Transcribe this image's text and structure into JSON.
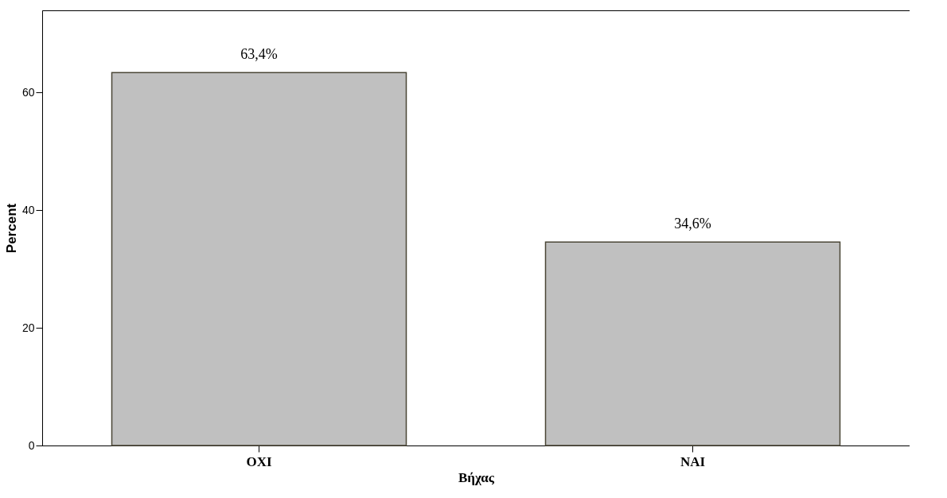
{
  "chart_data": {
    "type": "bar",
    "xlabel": "Βήχας",
    "ylabel": "Percent",
    "categories": [
      "ΟΧΙ",
      "ΝΑΙ"
    ],
    "values": [
      63.4,
      34.6
    ],
    "value_labels": [
      "63,4%",
      "34,6%"
    ],
    "color": "#c0c0c0",
    "ylim": [
      0,
      74
    ],
    "yticks": [
      0,
      20,
      40,
      60
    ],
    "grid": false
  }
}
